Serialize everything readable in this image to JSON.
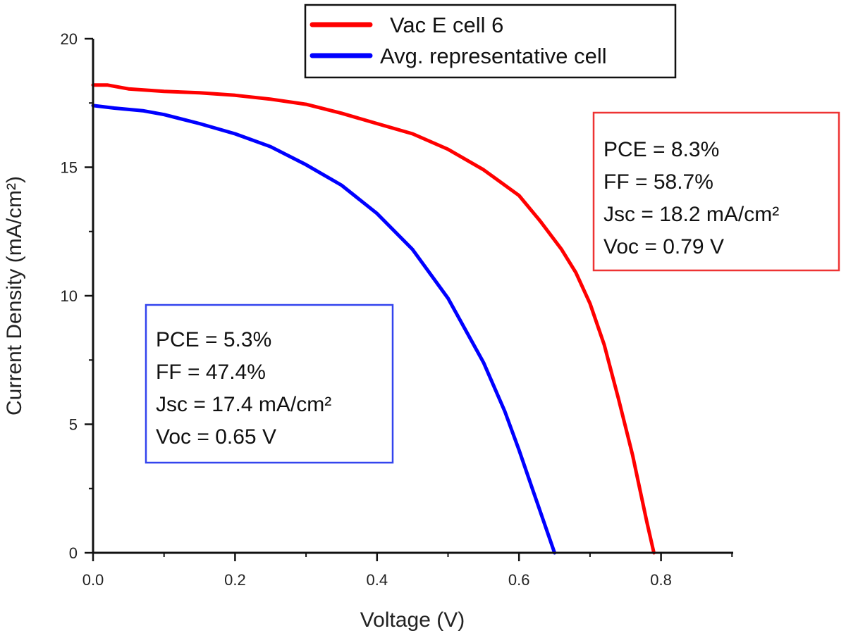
{
  "chart_data": {
    "type": "line",
    "title": "",
    "xlabel": "Voltage (V)",
    "ylabel": "Current Density (mA/cm²)",
    "xlim": [
      0,
      0.9
    ],
    "ylim": [
      0,
      20
    ],
    "x_ticks": [
      0.0,
      0.2,
      0.4,
      0.6,
      0.8
    ],
    "x_tick_labels": [
      "0.0",
      "0.2",
      "0.4",
      "0.6",
      "0.8"
    ],
    "y_ticks": [
      0,
      5,
      10,
      15,
      20
    ],
    "y_tick_labels": [
      "0",
      "5",
      "10",
      "15",
      "20"
    ],
    "legend_position": "top-center",
    "series": [
      {
        "name": "Vac E cell 6",
        "color": "#ff0000",
        "x": [
          0,
          0.02,
          0.05,
          0.1,
          0.15,
          0.2,
          0.25,
          0.3,
          0.35,
          0.4,
          0.45,
          0.5,
          0.55,
          0.6,
          0.63,
          0.66,
          0.68,
          0.7,
          0.72,
          0.74,
          0.76,
          0.77,
          0.78,
          0.79
        ],
        "y": [
          18.2,
          18.2,
          18.05,
          17.95,
          17.9,
          17.8,
          17.65,
          17.45,
          17.1,
          16.7,
          16.3,
          15.7,
          14.9,
          13.9,
          12.9,
          11.8,
          10.9,
          9.7,
          8.1,
          6.0,
          3.8,
          2.5,
          1.2,
          0.0
        ]
      },
      {
        "name": "Avg. representative cell",
        "color": "#0000ff",
        "x": [
          0,
          0.03,
          0.07,
          0.1,
          0.15,
          0.2,
          0.25,
          0.3,
          0.35,
          0.4,
          0.45,
          0.5,
          0.55,
          0.58,
          0.6,
          0.62,
          0.64,
          0.65
        ],
        "y": [
          17.4,
          17.3,
          17.2,
          17.05,
          16.7,
          16.3,
          15.8,
          15.1,
          14.3,
          13.2,
          11.8,
          9.9,
          7.4,
          5.5,
          4.0,
          2.4,
          0.8,
          0.0
        ]
      }
    ],
    "annotations": [
      {
        "id": "red",
        "color": "#ee3333",
        "lines": [
          "PCE = 8.3%",
          "FF = 58.7%",
          "Jsc = 18.2 mA/cm²",
          "Voc = 0.79 V"
        ]
      },
      {
        "id": "blue",
        "color": "#3344ee",
        "lines": [
          "PCE = 5.3%",
          "FF = 47.4%",
          "Jsc = 17.4 mA/cm²",
          "Voc = 0.65 V"
        ]
      }
    ]
  }
}
